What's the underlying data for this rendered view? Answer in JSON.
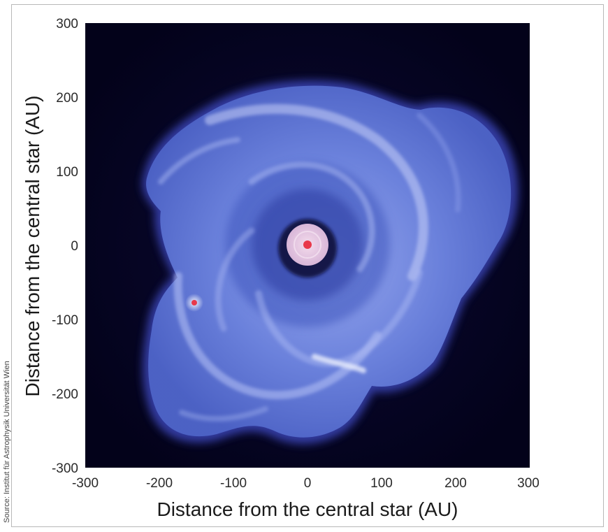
{
  "figure": {
    "credit": "Source: Institut für Astrophysik Universität Wien",
    "x_axis": {
      "label": "Distance from the central star (AU)",
      "ticks": [
        "-300",
        "-200",
        "-100",
        "0",
        "100",
        "200",
        "300"
      ]
    },
    "y_axis": {
      "label": "Distance from the central star (AU)",
      "ticks": [
        "300",
        "200",
        "100",
        "0",
        "-100",
        "-200",
        "-300"
      ]
    },
    "colors": {
      "background": "#040320",
      "disk": "#6f86df",
      "disk_highlight": "#c9d2fb",
      "star": "#e8384a",
      "core": "#e9c7e0"
    },
    "objects": [
      {
        "name": "central star",
        "x_au": 0,
        "y_au": 0
      },
      {
        "name": "planetary clump",
        "x_au": -150,
        "y_au": -80
      }
    ]
  }
}
